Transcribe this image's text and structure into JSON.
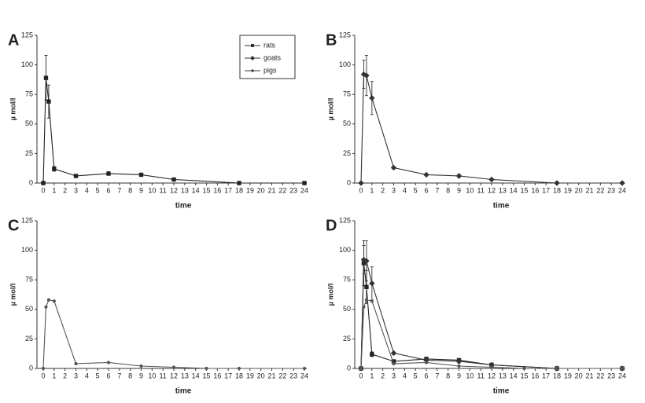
{
  "chart_data": [
    {
      "type": "line",
      "panel_label": "A",
      "xlabel": "time",
      "ylabel": "µ mol/l",
      "xlim": [
        0,
        24
      ],
      "xticks": [
        0,
        1,
        2,
        3,
        4,
        5,
        6,
        7,
        8,
        9,
        10,
        11,
        12,
        13,
        14,
        15,
        16,
        17,
        18,
        19,
        20,
        21,
        22,
        23,
        24
      ],
      "ylim": [
        0,
        125
      ],
      "yticks": [
        0,
        25,
        50,
        75,
        100,
        125
      ],
      "legend": [
        "rats",
        "goats",
        "pigs"
      ],
      "legend_markers": [
        "square",
        "diamond",
        "dot"
      ],
      "series": [
        {
          "color": "#222",
          "marker": "square",
          "x": [
            0,
            0.25,
            0.5,
            1,
            3,
            6,
            9,
            12,
            18,
            24
          ],
          "values": [
            0,
            89,
            69,
            12,
            6,
            8,
            7,
            3,
            0,
            0
          ],
          "errors": [
            null,
            19,
            14,
            2,
            1,
            1.5,
            1,
            1,
            null,
            null
          ]
        }
      ]
    },
    {
      "type": "line",
      "panel_label": "B",
      "xlabel": "time",
      "ylabel": "µ mol/l",
      "xlim": [
        0,
        24
      ],
      "xticks": [
        0,
        1,
        2,
        3,
        4,
        5,
        6,
        7,
        8,
        9,
        10,
        11,
        12,
        13,
        14,
        15,
        16,
        17,
        18,
        19,
        20,
        21,
        22,
        23,
        24
      ],
      "ylim": [
        0,
        125
      ],
      "yticks": [
        0,
        25,
        50,
        75,
        100,
        125
      ],
      "series": [
        {
          "color": "#333",
          "marker": "diamond",
          "x": [
            0,
            0.25,
            0.5,
            1,
            3,
            6,
            9,
            12,
            18,
            24
          ],
          "values": [
            0,
            92,
            91,
            72,
            13,
            7,
            6,
            3,
            0,
            0
          ],
          "errors": [
            null,
            12,
            17,
            14,
            1,
            1,
            1.5,
            0.5,
            null,
            null
          ]
        }
      ]
    },
    {
      "type": "line",
      "panel_label": "C",
      "xlabel": "time",
      "ylabel": "µ mol/l",
      "xlim": [
        0,
        24
      ],
      "xticks": [
        0,
        1,
        2,
        3,
        4,
        5,
        6,
        7,
        8,
        9,
        10,
        11,
        12,
        13,
        14,
        15,
        16,
        17,
        18,
        19,
        20,
        21,
        22,
        23,
        24
      ],
      "ylim": [
        0,
        125
      ],
      "yticks": [
        0,
        25,
        50,
        75,
        100,
        125
      ],
      "series": [
        {
          "color": "#555",
          "marker": "dot",
          "x": [
            0,
            0.25,
            0.5,
            1,
            3,
            6,
            9,
            12,
            15,
            18,
            24
          ],
          "values": [
            0,
            52,
            58,
            57,
            4,
            5,
            2,
            1,
            0,
            0,
            0
          ]
        }
      ]
    },
    {
      "type": "line",
      "panel_label": "D",
      "xlabel": "time",
      "ylabel": "µ mol/l",
      "xlim": [
        0,
        24
      ],
      "xticks": [
        0,
        1,
        2,
        3,
        4,
        5,
        6,
        7,
        8,
        9,
        10,
        11,
        12,
        13,
        14,
        15,
        16,
        17,
        18,
        19,
        20,
        21,
        22,
        23,
        24
      ],
      "ylim": [
        0,
        125
      ],
      "yticks": [
        0,
        25,
        50,
        75,
        100,
        125
      ],
      "series": [
        {
          "color": "#222",
          "marker": "square",
          "x": [
            0,
            0.25,
            0.5,
            1,
            3,
            6,
            9,
            12,
            18,
            24
          ],
          "values": [
            0,
            89,
            69,
            12,
            6,
            8,
            7,
            3,
            0,
            0
          ],
          "errors": [
            null,
            19,
            14,
            2,
            1,
            1.5,
            1,
            1,
            null,
            null
          ]
        },
        {
          "color": "#333",
          "marker": "diamond",
          "x": [
            0,
            0.25,
            0.5,
            1,
            3,
            6,
            9,
            12,
            18,
            24
          ],
          "values": [
            0,
            92,
            91,
            72,
            13,
            7,
            6,
            3,
            0,
            0
          ],
          "errors": [
            null,
            12,
            17,
            14,
            1,
            1,
            1.5,
            0.5,
            null,
            null
          ]
        },
        {
          "color": "#555",
          "marker": "dot",
          "x": [
            0,
            0.25,
            0.5,
            1,
            3,
            6,
            9,
            12,
            15,
            18,
            24
          ],
          "values": [
            0,
            52,
            58,
            57,
            4,
            5,
            2,
            1,
            0,
            0,
            0
          ]
        }
      ]
    }
  ]
}
